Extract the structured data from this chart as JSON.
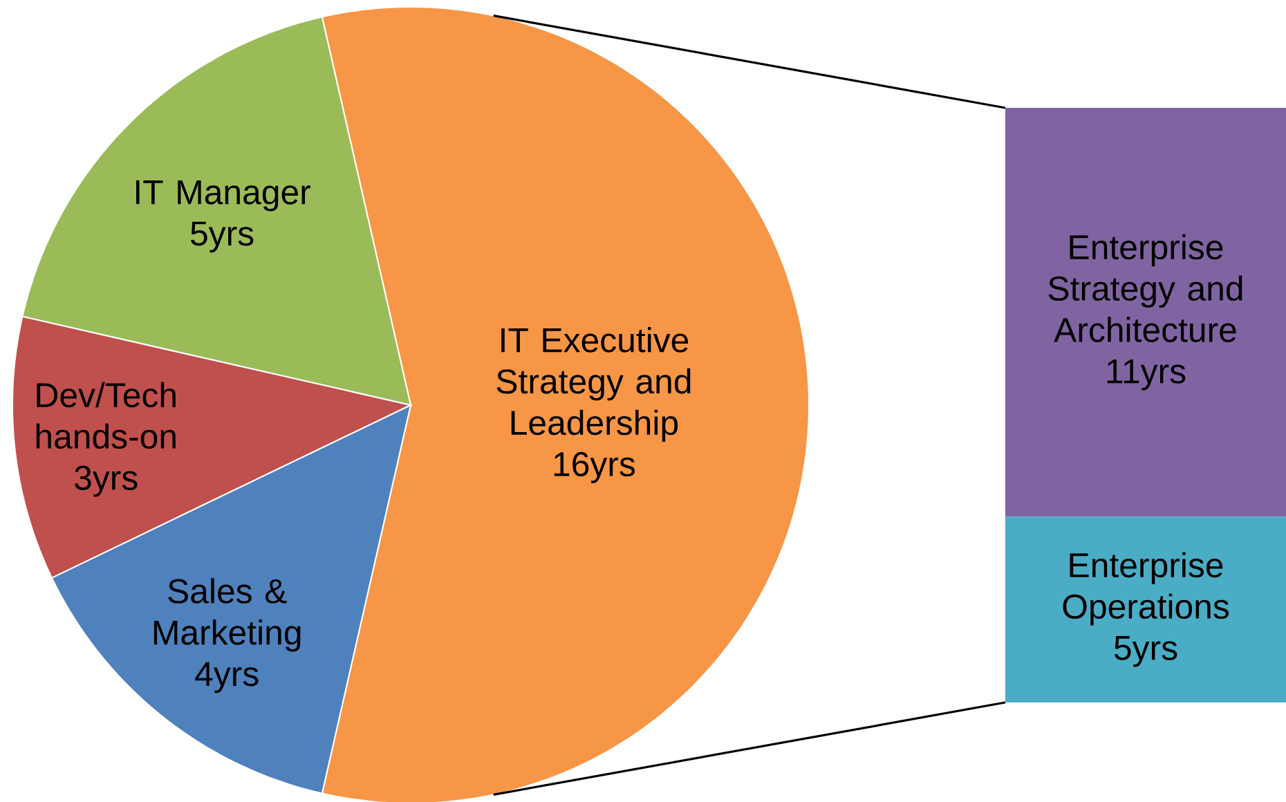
{
  "chart_data": [
    {
      "type": "pie",
      "categories": [
        "IT Executive Strategy and Leadership",
        "IT Manager",
        "Dev/Tech hands-on",
        "Sales & Marketing"
      ],
      "values": [
        16,
        5,
        3,
        4
      ],
      "colors": [
        "#f79646",
        "#9bbb59",
        "#c0504d",
        "#4f81bd"
      ],
      "value_labels": [
        "16yrs",
        "5yrs",
        "3yrs",
        "4yrs"
      ]
    },
    {
      "type": "bar",
      "stacked": true,
      "categories": [
        null
      ],
      "series": [
        {
          "name": "Enterprise Operations",
          "color": "#4bacc6",
          "values": [
            5
          ],
          "value_labels": [
            "5yrs"
          ]
        },
        {
          "name": "Enterprise Strategy and Architecture",
          "color": "#8064a2",
          "values": [
            11
          ],
          "value_labels": [
            "11yrs"
          ]
        }
      ]
    }
  ]
}
